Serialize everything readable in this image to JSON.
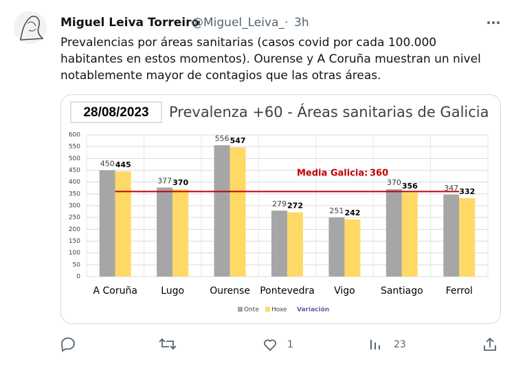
{
  "tweet": {
    "name": "Miguel Leiva Torreiro",
    "handle": "@Miguel_Leiva_",
    "separator": "·",
    "time": "3h",
    "text": [
      "Prevalencias por áreas sanitarias (casos covid por cada 100.000",
      "habitantes en estos momentos). Ourense y A Coruña muestran un nivel",
      "notablemente mayor de contagios que las otras áreas."
    ],
    "likes": 1,
    "views": 23
  },
  "chart_data": {
    "type": "bar",
    "date": "28/08/2023",
    "title": "Prevalenza +60 - Áreas sanitarias de Galicia",
    "categories": [
      "A Coruña",
      "Lugo",
      "Ourense",
      "Pontevedra",
      "Vigo",
      "Santiago",
      "Ferrol"
    ],
    "series": [
      {
        "name": "Onte",
        "color": "#a6a6a6",
        "values": [
          450,
          377,
          556,
          279,
          251,
          370,
          347
        ]
      },
      {
        "name": "Hoxe",
        "color": "#ffd966",
        "values": [
          445,
          370,
          547,
          272,
          242,
          356,
          332
        ]
      }
    ],
    "legend_note": "Variación",
    "mean": {
      "label": "Media Galicia:",
      "value": 360,
      "color": "#c00000"
    },
    "ylim": [
      0,
      600
    ],
    "yticks": [
      0,
      50,
      100,
      150,
      200,
      250,
      300,
      350,
      400,
      450,
      500,
      550,
      600
    ],
    "grid": true
  }
}
